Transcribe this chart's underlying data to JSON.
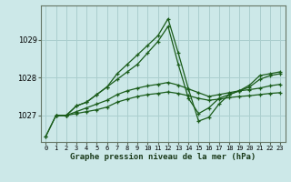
{
  "title": "Graphe pression niveau de la mer (hPa)",
  "bg_color": "#cce8e8",
  "line_color": "#1a5c1a",
  "grid_color": "#aacece",
  "x_ticks": [
    0,
    1,
    2,
    3,
    4,
    5,
    6,
    7,
    8,
    9,
    10,
    11,
    12,
    13,
    14,
    15,
    16,
    17,
    18,
    19,
    20,
    21,
    22,
    23
  ],
  "ylim": [
    1026.3,
    1029.9
  ],
  "yticks": [
    1027,
    1028,
    1029
  ],
  "lines": [
    {
      "x": [
        0,
        1,
        2,
        3,
        4,
        5,
        6,
        7,
        8,
        9,
        10,
        11,
        12,
        13,
        14,
        15,
        16,
        17,
        18,
        19,
        20,
        21,
        22,
        23
      ],
      "y": [
        1026.45,
        1027.0,
        1027.0,
        1027.25,
        1027.35,
        1027.55,
        1027.75,
        1028.1,
        1028.35,
        1028.6,
        1028.85,
        1029.1,
        1029.55,
        1028.65,
        1027.7,
        1026.85,
        1026.95,
        1027.3,
        1027.55,
        1027.65,
        1027.8,
        1028.05,
        1028.1,
        1028.15
      ]
    },
    {
      "x": [
        0,
        1,
        2,
        3,
        4,
        5,
        6,
        7,
        8,
        9,
        10,
        11,
        12,
        13,
        14,
        15,
        16,
        17,
        18,
        19,
        20,
        21,
        22,
        23
      ],
      "y": [
        1026.45,
        1027.0,
        1027.0,
        1027.25,
        1027.35,
        1027.55,
        1027.75,
        1027.95,
        1028.15,
        1028.35,
        1028.65,
        1028.95,
        1029.35,
        1028.35,
        1027.45,
        1027.05,
        1027.2,
        1027.45,
        1027.55,
        1027.65,
        1027.75,
        1027.95,
        1028.05,
        1028.1
      ]
    },
    {
      "x": [
        1,
        2,
        3,
        4,
        5,
        6,
        7,
        8,
        9,
        10,
        11,
        12,
        13,
        14,
        15,
        16,
        17,
        18,
        19,
        20,
        21,
        22,
        23
      ],
      "y": [
        1027.0,
        1027.0,
        1027.1,
        1027.2,
        1027.3,
        1027.4,
        1027.55,
        1027.65,
        1027.72,
        1027.78,
        1027.82,
        1027.87,
        1027.8,
        1027.7,
        1027.6,
        1027.5,
        1027.55,
        1027.6,
        1027.65,
        1027.68,
        1027.72,
        1027.78,
        1027.82
      ]
    },
    {
      "x": [
        1,
        2,
        3,
        4,
        5,
        6,
        7,
        8,
        9,
        10,
        11,
        12,
        13,
        14,
        15,
        16,
        17,
        18,
        19,
        20,
        21,
        22,
        23
      ],
      "y": [
        1027.0,
        1027.0,
        1027.05,
        1027.1,
        1027.15,
        1027.22,
        1027.35,
        1027.43,
        1027.5,
        1027.55,
        1027.58,
        1027.62,
        1027.58,
        1027.52,
        1027.45,
        1027.4,
        1027.43,
        1027.47,
        1027.5,
        1027.52,
        1027.55,
        1027.58,
        1027.6
      ]
    }
  ]
}
